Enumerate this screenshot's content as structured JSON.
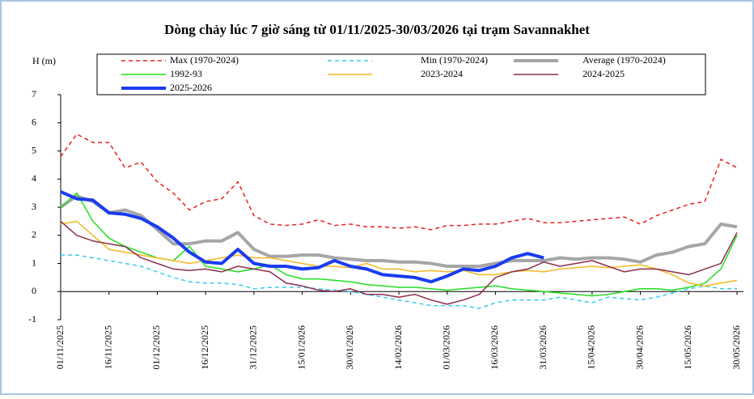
{
  "chart_data": {
    "type": "line",
    "title": "Dòng chảy lúc 7 giờ sáng từ 01/11/2025-30/03/2026 tại trạm Savannakhet",
    "y_label": "H (m)",
    "x": [
      "01/11/2025",
      "06/11/2025",
      "11/11/2025",
      "16/11/2025",
      "21/11/2025",
      "26/11/2025",
      "01/12/2025",
      "06/12/2025",
      "11/12/2025",
      "16/12/2025",
      "21/12/2025",
      "26/12/2025",
      "31/12/2025",
      "05/01/2026",
      "10/01/2026",
      "15/01/2026",
      "20/01/2026",
      "25/01/2026",
      "30/01/2026",
      "04/02/2026",
      "09/02/2026",
      "14/02/2026",
      "19/02/2026",
      "24/02/2026",
      "01/03/2026",
      "06/03/2026",
      "11/03/2026",
      "16/03/2026",
      "21/03/2026",
      "26/03/2026",
      "31/03/2026",
      "05/04/2026",
      "10/04/2026",
      "15/04/2026",
      "20/04/2026",
      "25/04/2026",
      "30/04/2026",
      "05/05/2026",
      "10/05/2026",
      "15/05/2026",
      "20/05/2026",
      "25/05/2026",
      "30/05/2026"
    ],
    "xlim": [
      "01/11/2025",
      "01/06/2026"
    ],
    "xticks": [
      "01/11/2025",
      "16/11/2025",
      "01/12/2025",
      "16/12/2025",
      "31/12/2025",
      "15/01/2026",
      "30/01/2026",
      "14/02/2026",
      "01/03/2026",
      "16/03/2026",
      "31/03/2026",
      "15/04/2026",
      "30/04/2026",
      "15/05/2026",
      "30/05/2026"
    ],
    "ylim": [
      -1,
      7
    ],
    "yticks": [
      -1,
      0,
      1,
      2,
      3,
      4,
      5,
      6,
      7
    ],
    "series": [
      {
        "name": "Max (1970-2024)",
        "color": "#e8201f",
        "dashed": true,
        "line_width": 1.5,
        "values": [
          4.8,
          5.6,
          5.3,
          5.3,
          4.4,
          4.6,
          3.9,
          3.5,
          2.9,
          3.2,
          3.3,
          3.9,
          2.7,
          2.4,
          2.35,
          2.4,
          2.55,
          2.35,
          2.4,
          2.3,
          2.3,
          2.25,
          2.3,
          2.2,
          2.35,
          2.35,
          2.4,
          2.4,
          2.5,
          2.6,
          2.45,
          2.45,
          2.5,
          2.55,
          2.6,
          2.65,
          2.4,
          2.7,
          2.9,
          3.1,
          3.2,
          4.7,
          4.4
        ]
      },
      {
        "name": "Min (1970-2024)",
        "color": "#33ccee",
        "dashed": true,
        "line_width": 1.5,
        "values": [
          1.3,
          1.3,
          1.2,
          1.1,
          1.0,
          0.9,
          0.7,
          0.5,
          0.35,
          0.3,
          0.3,
          0.25,
          0.1,
          0.15,
          0.15,
          0.15,
          0.1,
          0.05,
          0,
          -0.1,
          -0.2,
          -0.3,
          -0.4,
          -0.5,
          -0.5,
          -0.5,
          -0.6,
          -0.4,
          -0.3,
          -0.3,
          -0.3,
          -0.2,
          -0.3,
          -0.4,
          -0.2,
          -0.25,
          -0.3,
          -0.2,
          -0.05,
          0.1,
          0.2,
          0.1,
          0.1
        ]
      },
      {
        "name": "Average (1970-2024)",
        "color": "#a6a6a6",
        "dashed": false,
        "line_width": 4,
        "values": [
          3.0,
          3.4,
          3.2,
          2.8,
          2.9,
          2.7,
          2.2,
          1.7,
          1.7,
          1.8,
          1.8,
          2.1,
          1.5,
          1.25,
          1.25,
          1.3,
          1.3,
          1.2,
          1.15,
          1.1,
          1.1,
          1.05,
          1.05,
          1.0,
          0.9,
          0.9,
          0.9,
          1.0,
          1.1,
          1.1,
          1.1,
          1.2,
          1.15,
          1.2,
          1.2,
          1.15,
          1.05,
          1.3,
          1.4,
          1.6,
          1.7,
          2.4,
          2.3
        ]
      },
      {
        "name": "1992-93",
        "color": "#22dd22",
        "dashed": false,
        "line_width": 1.5,
        "values": [
          3.0,
          3.5,
          2.5,
          1.9,
          1.6,
          1.4,
          1.2,
          1.1,
          1.6,
          0.9,
          0.8,
          0.7,
          0.8,
          0.95,
          0.6,
          0.45,
          0.45,
          0.4,
          0.35,
          0.25,
          0.2,
          0.15,
          0.15,
          0.1,
          0.05,
          0.1,
          0.15,
          0.2,
          0.1,
          0.05,
          0,
          -0.05,
          -0.1,
          -0.15,
          -0.1,
          0,
          0.1,
          0.1,
          0.05,
          0.15,
          0.3,
          0.8,
          2.0
        ]
      },
      {
        "name": "2023-2024",
        "color": "#f5b820",
        "dashed": false,
        "line_width": 1.5,
        "values": [
          2.4,
          2.5,
          2.0,
          1.5,
          1.4,
          1.3,
          1.2,
          1.1,
          1.0,
          1.1,
          1.2,
          1.3,
          1.2,
          1.2,
          1.1,
          1.0,
          0.9,
          0.9,
          0.85,
          1.0,
          0.8,
          0.8,
          0.7,
          0.75,
          0.7,
          0.75,
          0.6,
          0.6,
          0.7,
          0.75,
          0.7,
          0.8,
          0.85,
          0.9,
          0.85,
          0.9,
          0.95,
          0.8,
          0.6,
          0.3,
          0.2,
          0.3,
          0.4
        ]
      },
      {
        "name": "2024-2025",
        "color": "#8b2e4e",
        "dashed": false,
        "line_width": 1.5,
        "values": [
          2.5,
          2.0,
          1.8,
          1.7,
          1.6,
          1.2,
          1.0,
          0.8,
          0.75,
          0.8,
          0.7,
          0.9,
          0.8,
          0.7,
          0.3,
          0.2,
          0.05,
          0,
          0.1,
          -0.1,
          -0.1,
          -0.2,
          -0.1,
          -0.3,
          -0.45,
          -0.3,
          -0.1,
          0.5,
          0.7,
          0.8,
          1.05,
          0.9,
          1.0,
          1.1,
          0.9,
          0.7,
          0.8,
          0.8,
          0.7,
          0.6,
          0.8,
          1.0,
          2.1
        ]
      },
      {
        "name": "2025-2026",
        "color": "#1a3cf0",
        "dashed": false,
        "line_width": 4,
        "values": [
          3.55,
          3.3,
          3.25,
          2.8,
          2.75,
          2.6,
          2.3,
          1.9,
          1.4,
          1.05,
          1.0,
          1.5,
          1.0,
          0.9,
          0.9,
          0.8,
          0.85,
          1.1,
          0.9,
          0.8,
          0.6,
          0.55,
          0.5,
          0.35,
          0.55,
          0.8,
          0.75,
          0.9,
          1.2,
          1.35,
          1.2,
          null,
          null,
          null,
          null,
          null,
          null,
          null,
          null,
          null,
          null,
          null,
          null
        ]
      }
    ]
  }
}
